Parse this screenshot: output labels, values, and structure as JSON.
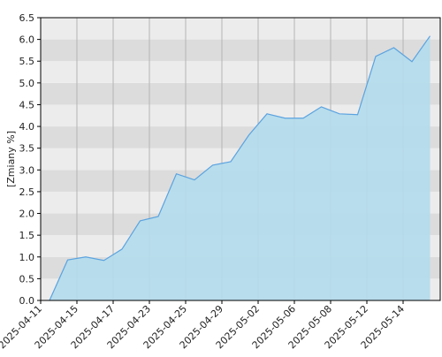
{
  "chart_data": {
    "type": "area",
    "y_label": "[Zmiany %]",
    "categories": [
      "2025-04-11",
      null,
      "2025-04-15",
      null,
      "2025-04-17",
      null,
      "2025-04-23",
      null,
      "2025-04-25",
      null,
      "2025-04-29",
      null,
      "2025-05-02",
      null,
      "2025-05-06",
      null,
      "2025-05-08",
      null,
      "2025-05-12",
      null,
      "2025-05-14",
      null
    ],
    "values": [
      0,
      0.93,
      1.0,
      0.92,
      1.18,
      1.83,
      1.93,
      2.91,
      2.77,
      3.11,
      3.19,
      3.8,
      4.29,
      4.19,
      4.19,
      4.45,
      4.29,
      4.27,
      5.61,
      5.81,
      5.49,
      6.08
    ],
    "color": "#5ba3e0",
    "fill_color": "#b3dcec",
    "ylim": [
      0,
      6.5
    ],
    "yticks": [
      {
        "value": 0,
        "label": "0.0"
      },
      0.5,
      {
        "value": 1,
        "label": "1.0"
      },
      1.5,
      {
        "value": 2,
        "label": "2.0"
      },
      2.5,
      {
        "value": 3,
        "label": "3.0"
      },
      3.5,
      {
        "value": 4,
        "label": "4.0"
      },
      4.5,
      {
        "value": 5,
        "label": "5.0"
      },
      5.5,
      {
        "value": 6,
        "label": "6.0"
      },
      6.5
    ],
    "grid": true
  }
}
